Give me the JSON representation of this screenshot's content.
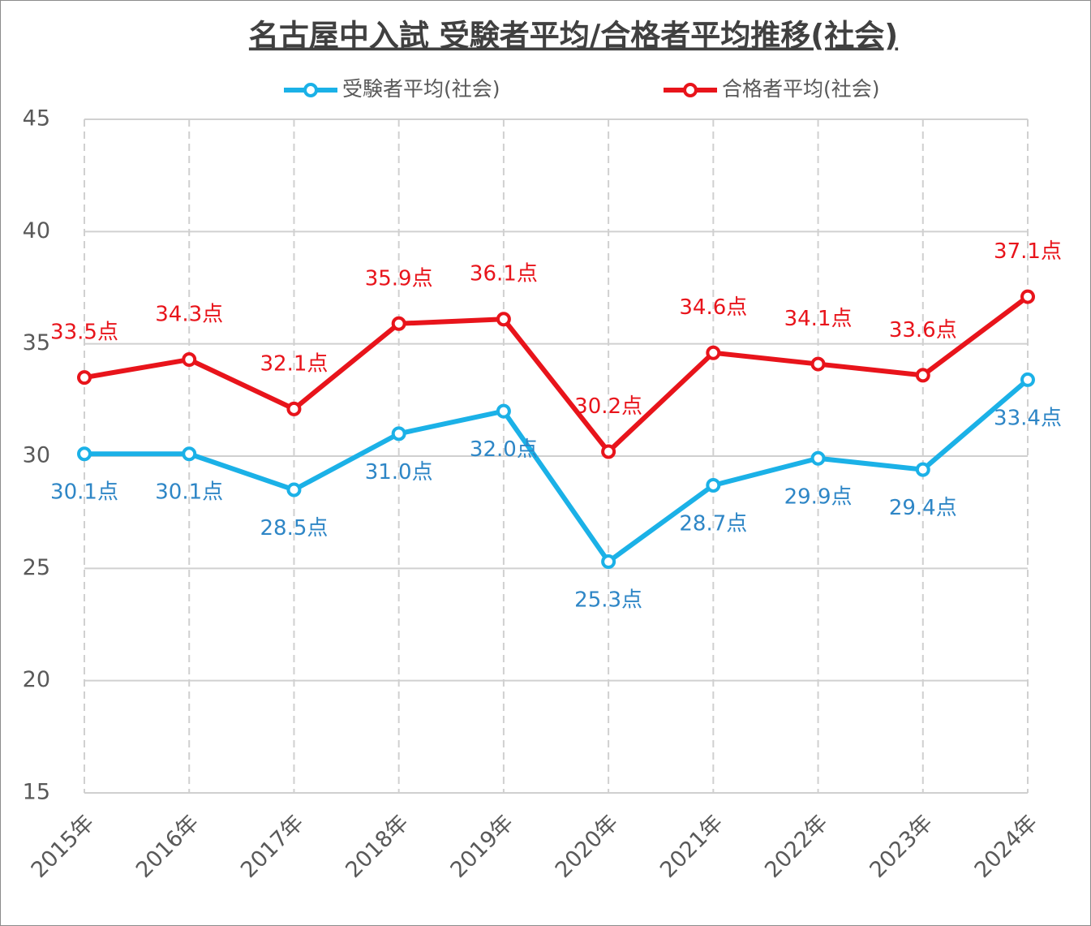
{
  "chart_data": {
    "type": "line",
    "title": "名古屋中入試 受験者平均/合格者平均推移(社会)",
    "categories": [
      "2015年",
      "2016年",
      "2017年",
      "2018年",
      "2019年",
      "2020年",
      "2021年",
      "2022年",
      "2023年",
      "2024年"
    ],
    "series": [
      {
        "name": "受験者平均(社会)",
        "color": "#1bb1e7",
        "values": [
          30.1,
          30.1,
          28.5,
          31.0,
          32.0,
          25.3,
          28.7,
          29.9,
          29.4,
          33.4
        ],
        "value_labels": [
          "30.1点",
          "30.1点",
          "28.5点",
          "31.0点",
          "32.0点",
          "25.3点",
          "28.7点",
          "29.9点",
          "29.4点",
          "33.4点"
        ]
      },
      {
        "name": "合格者平均(社会)",
        "color": "#e8141b",
        "values": [
          33.5,
          34.3,
          32.1,
          35.9,
          36.1,
          30.2,
          34.6,
          34.1,
          33.6,
          37.1
        ],
        "value_labels": [
          "33.5点",
          "34.3点",
          "32.1点",
          "35.9点",
          "36.1点",
          "30.2点",
          "34.6点",
          "34.1点",
          "33.6点",
          "37.1点"
        ]
      }
    ],
    "ylim": [
      15,
      45
    ],
    "yticks": [
      15,
      20,
      25,
      30,
      35,
      40,
      45
    ],
    "grid": true,
    "legend": "top"
  }
}
